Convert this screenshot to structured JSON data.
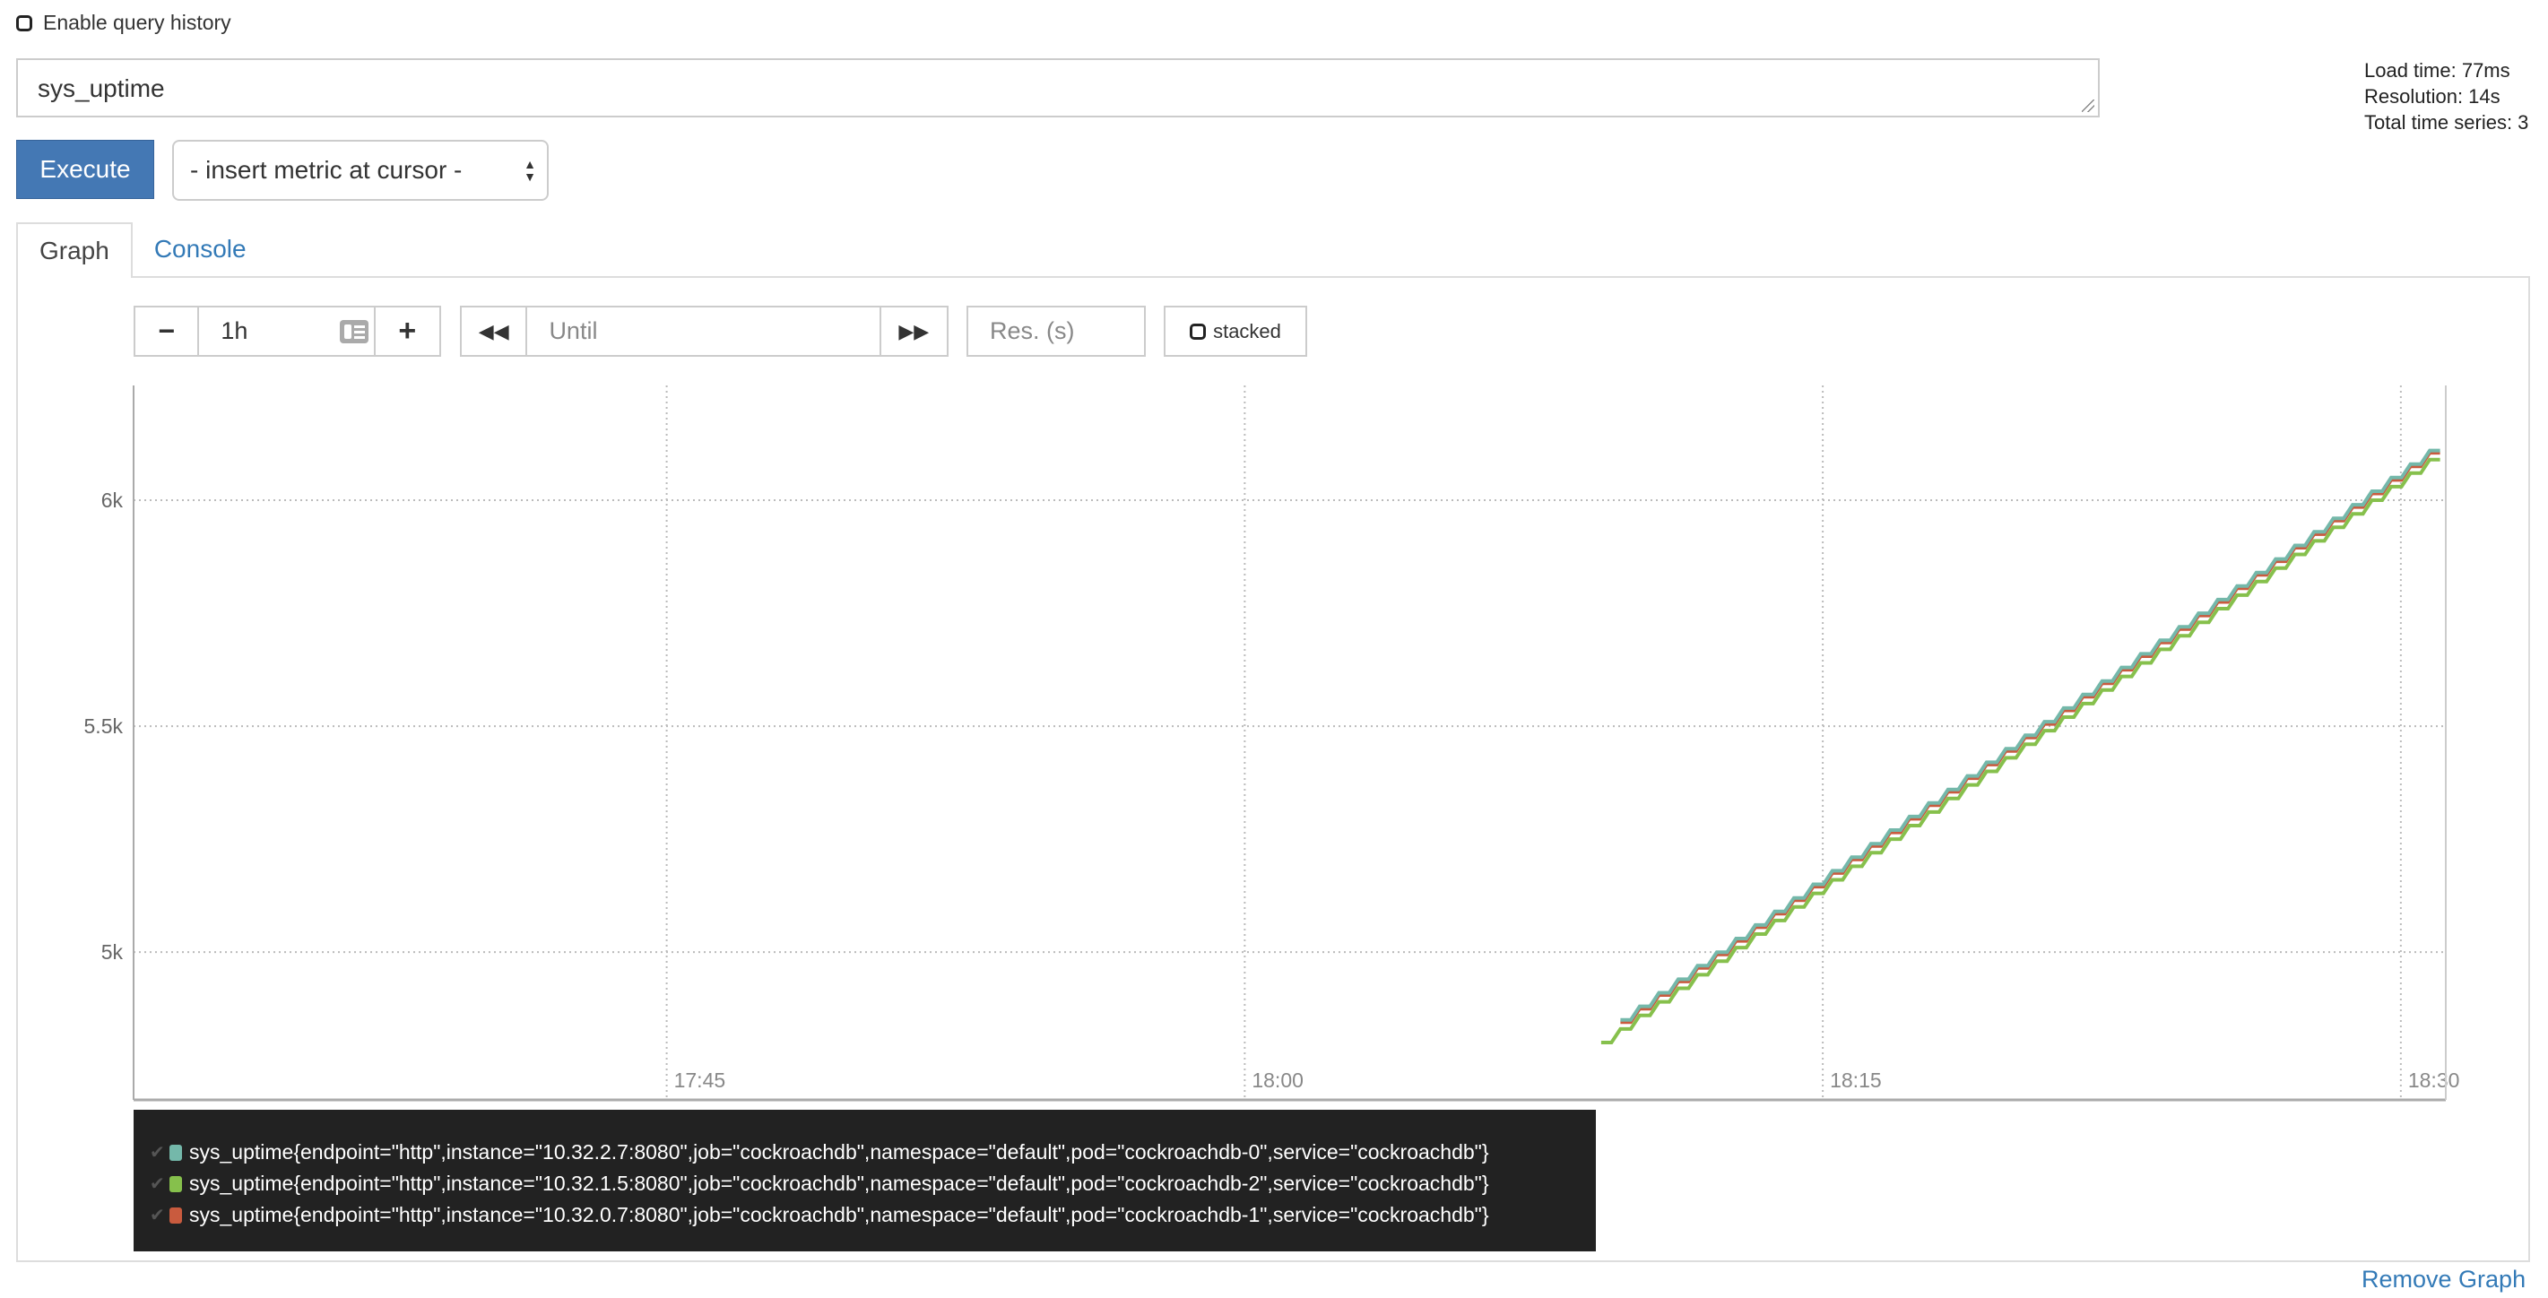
{
  "header": {
    "history_label": "Enable query history",
    "expression": "sys_uptime",
    "execute_label": "Execute",
    "insert_metric_label": "- insert metric at cursor -"
  },
  "stats": {
    "load_time": "Load time: 77ms",
    "resolution": "Resolution: 14s",
    "total_series": "Total time series: 3"
  },
  "tabs": [
    {
      "label": "Graph",
      "active": true
    },
    {
      "label": "Console",
      "active": false
    }
  ],
  "controls": {
    "range_value": "1h",
    "until_placeholder": "Until",
    "res_placeholder": "Res. (s)",
    "stacked_label": "stacked",
    "icons": [
      "minus-icon",
      "calendar-icon",
      "plus-icon",
      "backward-icon",
      "forward-icon",
      "checkbox-icon"
    ]
  },
  "remove_graph_label": "Remove Graph",
  "chart_data": {
    "type": "line",
    "xlim": [
      "17:31:10",
      "18:31:10"
    ],
    "ylim": [
      4673,
      6254
    ],
    "grid": true,
    "x_ticks": [
      "17:45",
      "18:00",
      "18:15",
      "18:30"
    ],
    "y_ticks": [
      {
        "value": 5000,
        "label": "5k"
      },
      {
        "value": 5500,
        "label": "5.5k"
      },
      {
        "value": 6000,
        "label": "6k"
      }
    ],
    "legend_position": "bottom",
    "x": [
      "18:09:15",
      "18:09:45",
      "18:10:15",
      "18:10:45",
      "18:11:15",
      "18:11:45",
      "18:12:15",
      "18:12:45",
      "18:13:15",
      "18:13:45",
      "18:14:15",
      "18:14:45",
      "18:15:15",
      "18:15:45",
      "18:16:15",
      "18:16:45",
      "18:17:15",
      "18:17:45",
      "18:18:15",
      "18:18:45",
      "18:19:15",
      "18:19:45",
      "18:20:15",
      "18:20:45",
      "18:21:15",
      "18:21:45",
      "18:22:15",
      "18:22:45",
      "18:23:15",
      "18:23:45",
      "18:24:15",
      "18:24:45",
      "18:25:15",
      "18:25:45",
      "18:26:15",
      "18:26:45",
      "18:27:15",
      "18:27:45",
      "18:28:15",
      "18:28:45",
      "18:29:15",
      "18:29:45",
      "18:30:15",
      "18:30:45"
    ],
    "series": [
      {
        "name": "sys_uptime{endpoint=\"http\",instance=\"10.32.2.7:8080\",job=\"cockroachdb\",namespace=\"default\",pod=\"cockroachdb-0\",service=\"cockroachdb\"}",
        "color": "#74b8aa",
        "values": [
          null,
          4850,
          4880,
          4910,
          4940,
          4970,
          5000,
          5030,
          5060,
          5090,
          5120,
          5150,
          5180,
          5210,
          5240,
          5270,
          5300,
          5330,
          5360,
          5390,
          5420,
          5450,
          5480,
          5510,
          5540,
          5570,
          5600,
          5630,
          5660,
          5690,
          5720,
          5750,
          5780,
          5810,
          5840,
          5870,
          5900,
          5930,
          5960,
          5990,
          6020,
          6050,
          6080,
          6110
        ]
      },
      {
        "name": "sys_uptime{endpoint=\"http\",instance=\"10.32.1.5:8080\",job=\"cockroachdb\",namespace=\"default\",pod=\"cockroachdb-2\",service=\"cockroachdb\"}",
        "color": "#86c04c",
        "values": [
          4800,
          4830,
          4860,
          4890,
          4920,
          4950,
          4980,
          5010,
          5040,
          5070,
          5100,
          5130,
          5160,
          5190,
          5220,
          5250,
          5280,
          5310,
          5340,
          5370,
          5400,
          5430,
          5460,
          5490,
          5520,
          5550,
          5580,
          5610,
          5640,
          5670,
          5700,
          5730,
          5760,
          5790,
          5820,
          5850,
          5880,
          5910,
          5940,
          5970,
          6000,
          6030,
          6060,
          6090
        ]
      },
      {
        "name": "sys_uptime{endpoint=\"http\",instance=\"10.32.0.7:8080\",job=\"cockroachdb\",namespace=\"default\",pod=\"cockroachdb-1\",service=\"cockroachdb\"}",
        "color": "#c95b3e",
        "values": [
          null,
          4845,
          4875,
          4905,
          4935,
          4965,
          4995,
          5025,
          5055,
          5085,
          5115,
          5145,
          5175,
          5205,
          5235,
          5265,
          5295,
          5325,
          5355,
          5385,
          5415,
          5445,
          5475,
          5505,
          5535,
          5565,
          5595,
          5625,
          5655,
          5685,
          5715,
          5745,
          5775,
          5805,
          5835,
          5865,
          5895,
          5925,
          5955,
          5985,
          6015,
          6045,
          6075,
          6105
        ]
      }
    ]
  }
}
